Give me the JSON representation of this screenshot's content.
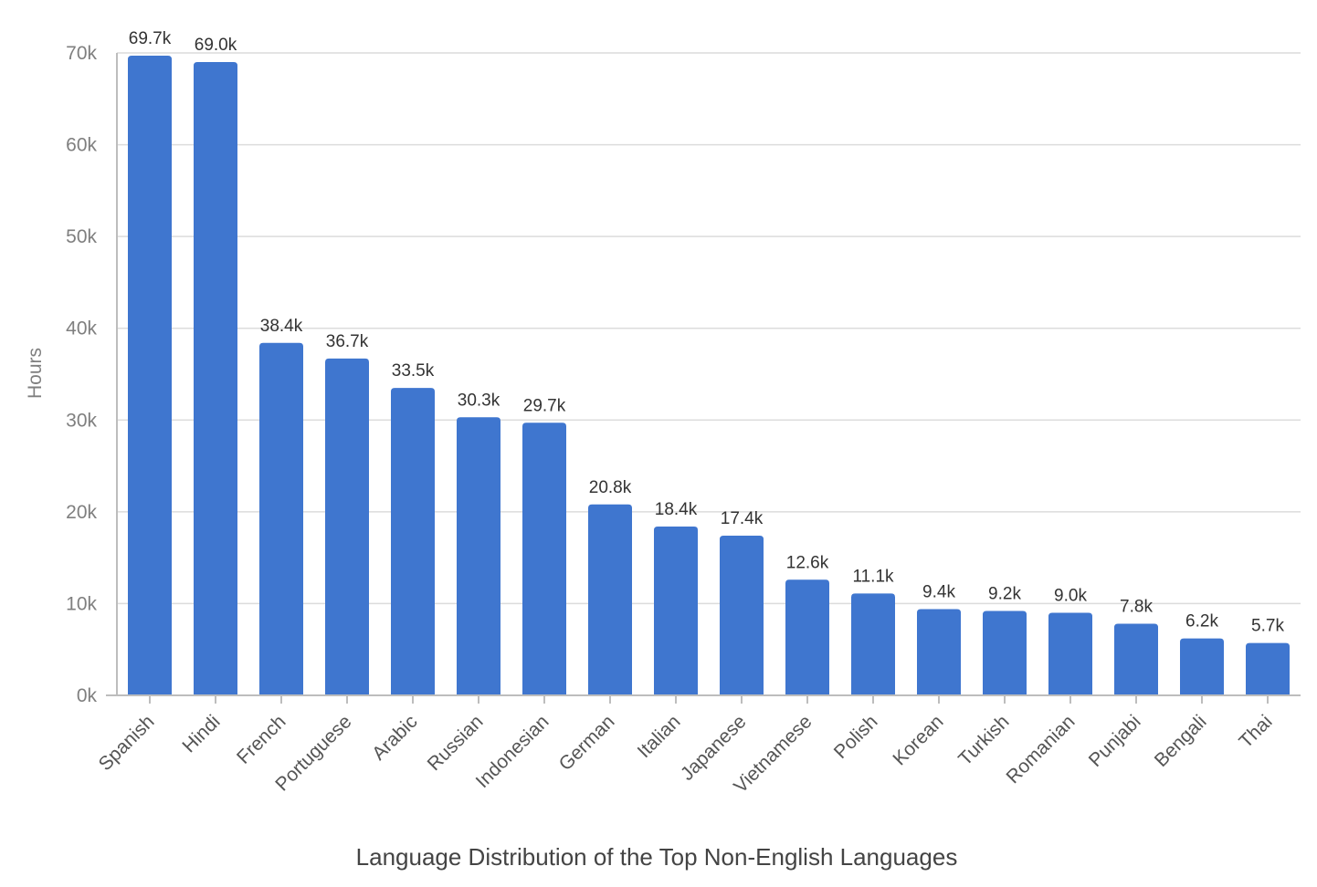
{
  "chart_data": {
    "type": "bar",
    "title": "Language Distribution of the Top Non-English Languages",
    "xlabel": "",
    "ylabel": "Hours",
    "ylim": [
      0,
      70000
    ],
    "yticks": [
      0,
      10000,
      20000,
      30000,
      40000,
      50000,
      60000,
      70000
    ],
    "ytick_labels": [
      "0k",
      "10k",
      "20k",
      "30k",
      "40k",
      "50k",
      "60k",
      "70k"
    ],
    "grid": true,
    "bar_color": "#3f76cf",
    "categories": [
      "Spanish",
      "Hindi",
      "French",
      "Portuguese",
      "Arabic",
      "Russian",
      "Indonesian",
      "German",
      "Italian",
      "Japanese",
      "Vietnamese",
      "Polish",
      "Korean",
      "Turkish",
      "Romanian",
      "Punjabi",
      "Bengali",
      "Thai"
    ],
    "values": [
      69700,
      69000,
      38400,
      36700,
      33500,
      30300,
      29700,
      20800,
      18400,
      17400,
      12600,
      11100,
      9400,
      9200,
      9000,
      7800,
      6200,
      5700
    ],
    "data_labels": [
      "69.7k",
      "69.0k",
      "38.4k",
      "36.7k",
      "33.5k",
      "30.3k",
      "29.7k",
      "20.8k",
      "18.4k",
      "17.4k",
      "12.6k",
      "11.1k",
      "9.4k",
      "9.2k",
      "9.0k",
      "7.8k",
      "6.2k",
      "5.7k"
    ]
  }
}
